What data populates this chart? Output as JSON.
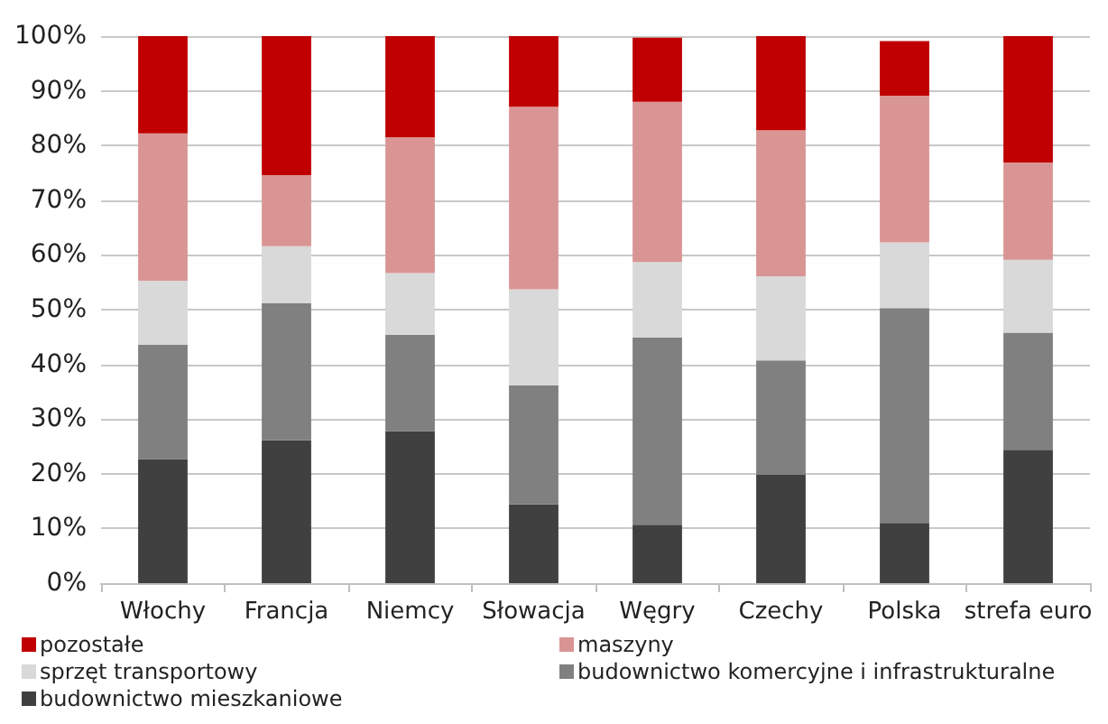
{
  "chart_data": {
    "type": "bar",
    "stacked": true,
    "categories": [
      "Włochy",
      "Francja",
      "Niemcy",
      "Słowacja",
      "Węgry",
      "Czechy",
      "Polska",
      "strefa euro"
    ],
    "series": [
      {
        "name": "budownictwo mieszkaniowe",
        "color": "#404040",
        "values": [
          22.7,
          26.1,
          27.8,
          14.4,
          10.7,
          19.8,
          11.0,
          24.4
        ]
      },
      {
        "name": "budownictwo komercyjne i infrastrukturalne",
        "color": "#808080",
        "values": [
          20.9,
          25.1,
          17.6,
          21.8,
          34.2,
          20.9,
          39.3,
          21.4
        ]
      },
      {
        "name": "sprzęt transportowy",
        "color": "#d9d9d9",
        "values": [
          11.7,
          10.4,
          11.3,
          17.5,
          13.8,
          15.4,
          12.0,
          13.3
        ]
      },
      {
        "name": "maszyny",
        "color": "#d99594",
        "values": [
          26.9,
          13.0,
          24.8,
          33.4,
          29.3,
          26.7,
          26.8,
          17.8
        ]
      },
      {
        "name": "pozostałe",
        "color": "#c00000",
        "values": [
          17.8,
          25.4,
          18.5,
          12.9,
          11.7,
          17.2,
          10.0,
          23.1
        ]
      }
    ],
    "ylim": [
      0,
      100
    ],
    "yticks": [
      {
        "value": 0,
        "label": "0%"
      },
      {
        "value": 10,
        "label": "10%"
      },
      {
        "value": 20,
        "label": "20%"
      },
      {
        "value": 30,
        "label": "30%"
      },
      {
        "value": 40,
        "label": "40%"
      },
      {
        "value": 50,
        "label": "50%"
      },
      {
        "value": 60,
        "label": "60%"
      },
      {
        "value": 70,
        "label": "70%"
      },
      {
        "value": 80,
        "label": "80%"
      },
      {
        "value": 90,
        "label": "90%"
      },
      {
        "value": 100,
        "label": "100%"
      }
    ],
    "grid": "y",
    "legend": "bottom"
  }
}
